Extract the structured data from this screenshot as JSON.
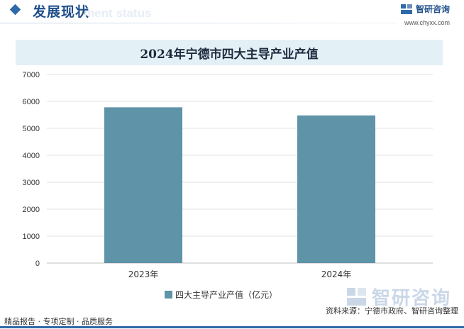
{
  "header": {
    "title": "发展现状",
    "ghost_text": "ment status",
    "brand_name": "智研咨询",
    "brand_url": "www.chyxx.com"
  },
  "chart_data": {
    "type": "bar",
    "title": "2024年宁德市四大主导产业产值",
    "categories": [
      "2023年",
      "2024年"
    ],
    "series": [
      {
        "name": "四大主导产业产值（亿元）",
        "values": [
          5780,
          5480
        ]
      }
    ],
    "ylim": [
      0,
      7000
    ],
    "yticks": [
      "0",
      "1000",
      "2000",
      "3000",
      "4000",
      "5000",
      "6000",
      "7000"
    ],
    "bar_color": "#5f93a8",
    "grid": true,
    "legend_position": "bottom"
  },
  "footer": {
    "left": "精品报告 · 专项定制 · 品质服务",
    "source": "资料来源：宁德市政府、智研咨询整理"
  },
  "watermark": {
    "logo_name": "智研咨询"
  }
}
